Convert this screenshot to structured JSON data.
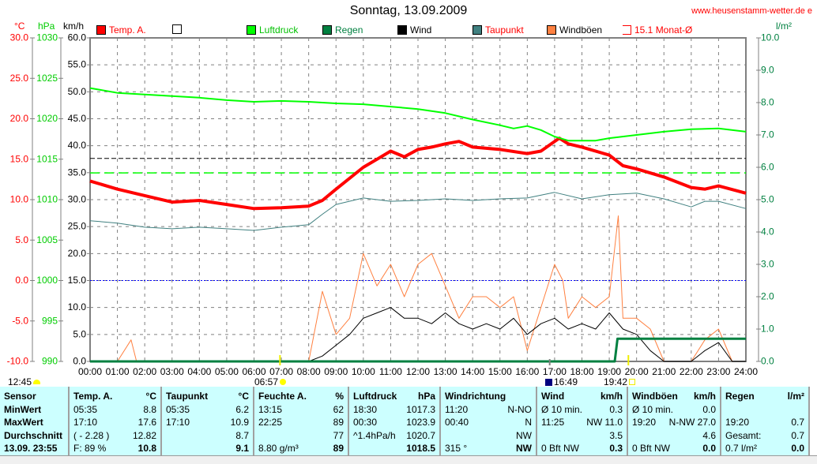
{
  "header": {
    "title": "Sonntag, 13.09.2009",
    "website": "www.heusenstamm-wetter.de e"
  },
  "units": {
    "temp": "°C",
    "pressure": "hPa",
    "wind": "km/h",
    "rain": "l/m²"
  },
  "legend": [
    {
      "label": "Temp. A.",
      "color": "#ff0000",
      "text_color": "#ff0000"
    },
    {
      "label": "",
      "color": "#ffffff",
      "text_color": "#000000"
    },
    {
      "label": "Luftdruck",
      "color": "#00ff00",
      "text_color": "#00c000"
    },
    {
      "label": "Regen",
      "color": "#008040",
      "text_color": "#008040"
    },
    {
      "label": "Wind",
      "color": "#000000",
      "text_color": "#000000"
    },
    {
      "label": "Taupunkt",
      "color": "#408080",
      "text_color": "#ff0000"
    },
    {
      "label": "Windböen",
      "color": "#ff8040",
      "text_color": "#000000"
    },
    {
      "label": "15.1 Monat-Ø",
      "color": "#ff0000",
      "text_color": "#ff0000"
    }
  ],
  "markers": {
    "sunrise_label": "06:57",
    "moonset_label": "16:49",
    "sunset_label": "19:42",
    "moon_left_label": "12:45"
  },
  "chart_data": {
    "type": "line",
    "x_ticks": [
      "00:00",
      "01:00",
      "02:00",
      "03:00",
      "04:00",
      "05:00",
      "06:00",
      "07:00",
      "08:00",
      "09:00",
      "10:00",
      "11:00",
      "12:00",
      "13:00",
      "14:00",
      "15:00",
      "16:00",
      "17:00",
      "18:00",
      "19:00",
      "20:00",
      "21:00",
      "22:00",
      "23:00",
      "24:00"
    ],
    "axes": {
      "temp": {
        "range": [
          -10,
          30
        ],
        "ticks": [
          "30.0",
          "25.0",
          "20.0",
          "15.0",
          "10.0",
          "5.0",
          "0.0",
          "-5.0",
          "-10.0"
        ]
      },
      "pressure": {
        "range": [
          990,
          1030
        ],
        "ticks": [
          "1030",
          "1025",
          "1020",
          "1015",
          "1010",
          "1005",
          "1000",
          "995",
          "990"
        ]
      },
      "wind": {
        "range": [
          0,
          60
        ],
        "ticks": [
          "60.0",
          "55.0",
          "50.0",
          "45.0",
          "40.0",
          "35.0",
          "30.0",
          "25.0",
          "20.0",
          "15.0",
          "10.0",
          "5.0",
          "0.0"
        ]
      },
      "rain": {
        "range": [
          0,
          10
        ],
        "ticks": [
          "10.0",
          "9.0",
          "8.0",
          "7.0",
          "6.0",
          "5.0",
          "4.0",
          "3.0",
          "2.0",
          "1.0",
          "0.0"
        ]
      }
    },
    "reference_lines": {
      "monthly_avg_temp": 15.1,
      "standard_pressure": 1013.3,
      "freezing_temp": 0
    },
    "series": [
      {
        "name": "Temp. A.",
        "axis": "temp",
        "color": "#ff0000",
        "x": [
          0,
          1,
          2,
          3,
          4,
          5,
          6,
          7,
          8,
          8.5,
          9,
          10,
          10.5,
          11,
          11.5,
          12,
          12.5,
          13,
          13.5,
          14,
          15,
          16,
          16.5,
          17.17,
          17.5,
          18,
          19,
          19.5,
          20,
          21,
          22,
          22.5,
          23,
          24
        ],
        "y": [
          12.3,
          11.3,
          10.5,
          9.7,
          9.9,
          9.4,
          8.9,
          9.0,
          9.2,
          9.9,
          11.3,
          14.0,
          15.0,
          16.0,
          15.3,
          16.2,
          16.5,
          16.9,
          17.2,
          16.5,
          16.2,
          15.7,
          16.0,
          17.6,
          16.9,
          16.5,
          15.5,
          14.2,
          13.8,
          12.8,
          11.5,
          11.3,
          11.7,
          10.8
        ]
      },
      {
        "name": "Luftdruck",
        "axis": "pressure",
        "color": "#00ff00",
        "x": [
          0,
          1,
          2,
          3,
          4,
          5,
          6,
          7,
          8,
          9,
          10,
          11,
          12,
          13,
          14,
          15,
          15.5,
          16,
          16.5,
          17,
          17.5,
          18,
          18.5,
          19,
          20,
          21,
          22,
          23,
          24
        ],
        "y": [
          1023.8,
          1023.2,
          1023.0,
          1022.8,
          1022.6,
          1022.3,
          1022.1,
          1022.2,
          1022.1,
          1021.9,
          1021.8,
          1021.5,
          1021.2,
          1020.7,
          1019.9,
          1019.2,
          1018.8,
          1019.1,
          1018.6,
          1017.8,
          1017.3,
          1017.3,
          1017.3,
          1017.6,
          1018.0,
          1018.4,
          1018.7,
          1018.8,
          1018.4
        ]
      },
      {
        "name": "Taupunkt",
        "axis": "temp",
        "color": "#408080",
        "x": [
          0,
          1,
          2,
          3,
          4,
          5,
          6,
          7,
          8,
          8.5,
          9,
          10,
          11,
          12,
          13,
          14,
          15,
          16,
          17,
          18,
          19,
          20,
          21,
          22,
          22.5,
          23,
          24
        ],
        "y": [
          7.4,
          7.1,
          6.6,
          6.4,
          6.6,
          6.4,
          6.2,
          6.6,
          6.9,
          8.2,
          9.4,
          10.2,
          9.8,
          9.9,
          10.1,
          9.9,
          10.1,
          10.2,
          10.9,
          10.1,
          10.6,
          10.8,
          10.1,
          9.1,
          9.8,
          9.8,
          8.9
        ]
      },
      {
        "name": "Windböen",
        "axis": "wind",
        "color": "#ff8040",
        "x": [
          0,
          1,
          1.5,
          1.7,
          2,
          8,
          8.5,
          9,
          9.5,
          10,
          10.5,
          11,
          11.5,
          12,
          12.5,
          13,
          13.5,
          14,
          14.5,
          15,
          15.5,
          16,
          16.5,
          17,
          17.3,
          17.5,
          18,
          18.5,
          19,
          19.33,
          19.5,
          20,
          20.5,
          21,
          22,
          22.5,
          23,
          23.5,
          24
        ],
        "y": [
          0,
          0,
          4,
          0,
          0,
          0,
          13,
          5,
          8,
          20,
          14,
          18,
          12,
          18,
          20,
          14,
          8,
          12,
          12,
          10,
          12,
          2,
          10,
          18,
          15,
          8,
          12,
          10,
          12,
          27,
          8,
          8,
          6,
          0,
          0,
          4,
          6,
          0,
          0
        ]
      },
      {
        "name": "Wind",
        "axis": "wind",
        "color": "#000000",
        "x": [
          0,
          8,
          8.5,
          9,
          9.5,
          10,
          10.5,
          11,
          11.5,
          12,
          12.5,
          13,
          13.5,
          14,
          14.5,
          15,
          15.5,
          16,
          16.5,
          17,
          17.5,
          18,
          18.5,
          19,
          19.5,
          20,
          20.5,
          21,
          22,
          22.5,
          23,
          23.5,
          24
        ],
        "y": [
          0,
          0,
          1,
          3,
          5,
          8,
          9,
          10,
          8,
          8,
          7,
          9,
          7,
          6,
          7,
          6,
          8,
          5,
          7,
          8,
          6,
          7,
          6,
          9,
          6,
          5,
          2,
          0,
          0,
          2,
          3.5,
          0,
          0
        ]
      },
      {
        "name": "Regen",
        "axis": "rain",
        "color": "#008040",
        "x": [
          0,
          19.2,
          19.3,
          24
        ],
        "y": [
          0,
          0,
          0.7,
          0.7
        ]
      }
    ]
  },
  "table": {
    "sensor": {
      "header": "Sensor",
      "rows": [
        "MinWert",
        "MaxWert",
        "Durchschnitt",
        "13.09. 23:55"
      ]
    },
    "columns": [
      {
        "header": "Temp. A.",
        "unit": "°C",
        "rows": [
          [
            "05:35",
            "8.8"
          ],
          [
            "17:10",
            "17.6"
          ],
          [
            "( - 2.28 )",
            "12.82"
          ],
          [
            "F: 89 %",
            "10.8"
          ]
        ]
      },
      {
        "header": "Taupunkt",
        "unit": "°C",
        "rows": [
          [
            "05:35",
            "6.2"
          ],
          [
            "17:10",
            "10.9"
          ],
          [
            "",
            "8.7"
          ],
          [
            "",
            "9.1"
          ]
        ]
      },
      {
        "header": "Feuchte A.",
        "unit": "%",
        "rows": [
          [
            "13:15",
            "62"
          ],
          [
            "22:25",
            "89"
          ],
          [
            "",
            "77"
          ],
          [
            "8.80 g/m³",
            "89"
          ]
        ]
      },
      {
        "header": "Luftdruck",
        "unit": "hPa",
        "rows": [
          [
            "18:30",
            "1017.3"
          ],
          [
            "00:30",
            "1023.9"
          ],
          [
            "^1.4hPa/h",
            "1020.7"
          ],
          [
            "",
            "1018.5"
          ]
        ]
      },
      {
        "header": "Windrichtung",
        "unit": "",
        "rows": [
          [
            "11:20",
            "N-NO"
          ],
          [
            "00:40",
            "N"
          ],
          [
            "",
            "NW"
          ],
          [
            "315 °",
            "NW"
          ]
        ]
      },
      {
        "header": "Wind",
        "unit": "km/h",
        "rows": [
          [
            "Ø 10 min.",
            "0.3"
          ],
          [
            "11:25",
            "NW 11.0"
          ],
          [
            "",
            "3.5"
          ],
          [
            "0 Bft NW",
            "0.3"
          ]
        ]
      },
      {
        "header": "Windböen",
        "unit": "km/h",
        "rows": [
          [
            "Ø 10 min.",
            "0.0"
          ],
          [
            "19:20",
            "N-NW 27.0"
          ],
          [
            "",
            "4.6"
          ],
          [
            "0 Bft NW",
            "0.0"
          ]
        ]
      },
      {
        "header": "Regen",
        "unit": "l/m²",
        "rows": [
          [
            "",
            ""
          ],
          [
            "19:20",
            "0.7"
          ],
          [
            "Gesamt:",
            "0.7"
          ],
          [
            "0.7 l/m²",
            "0.0"
          ]
        ]
      }
    ]
  }
}
